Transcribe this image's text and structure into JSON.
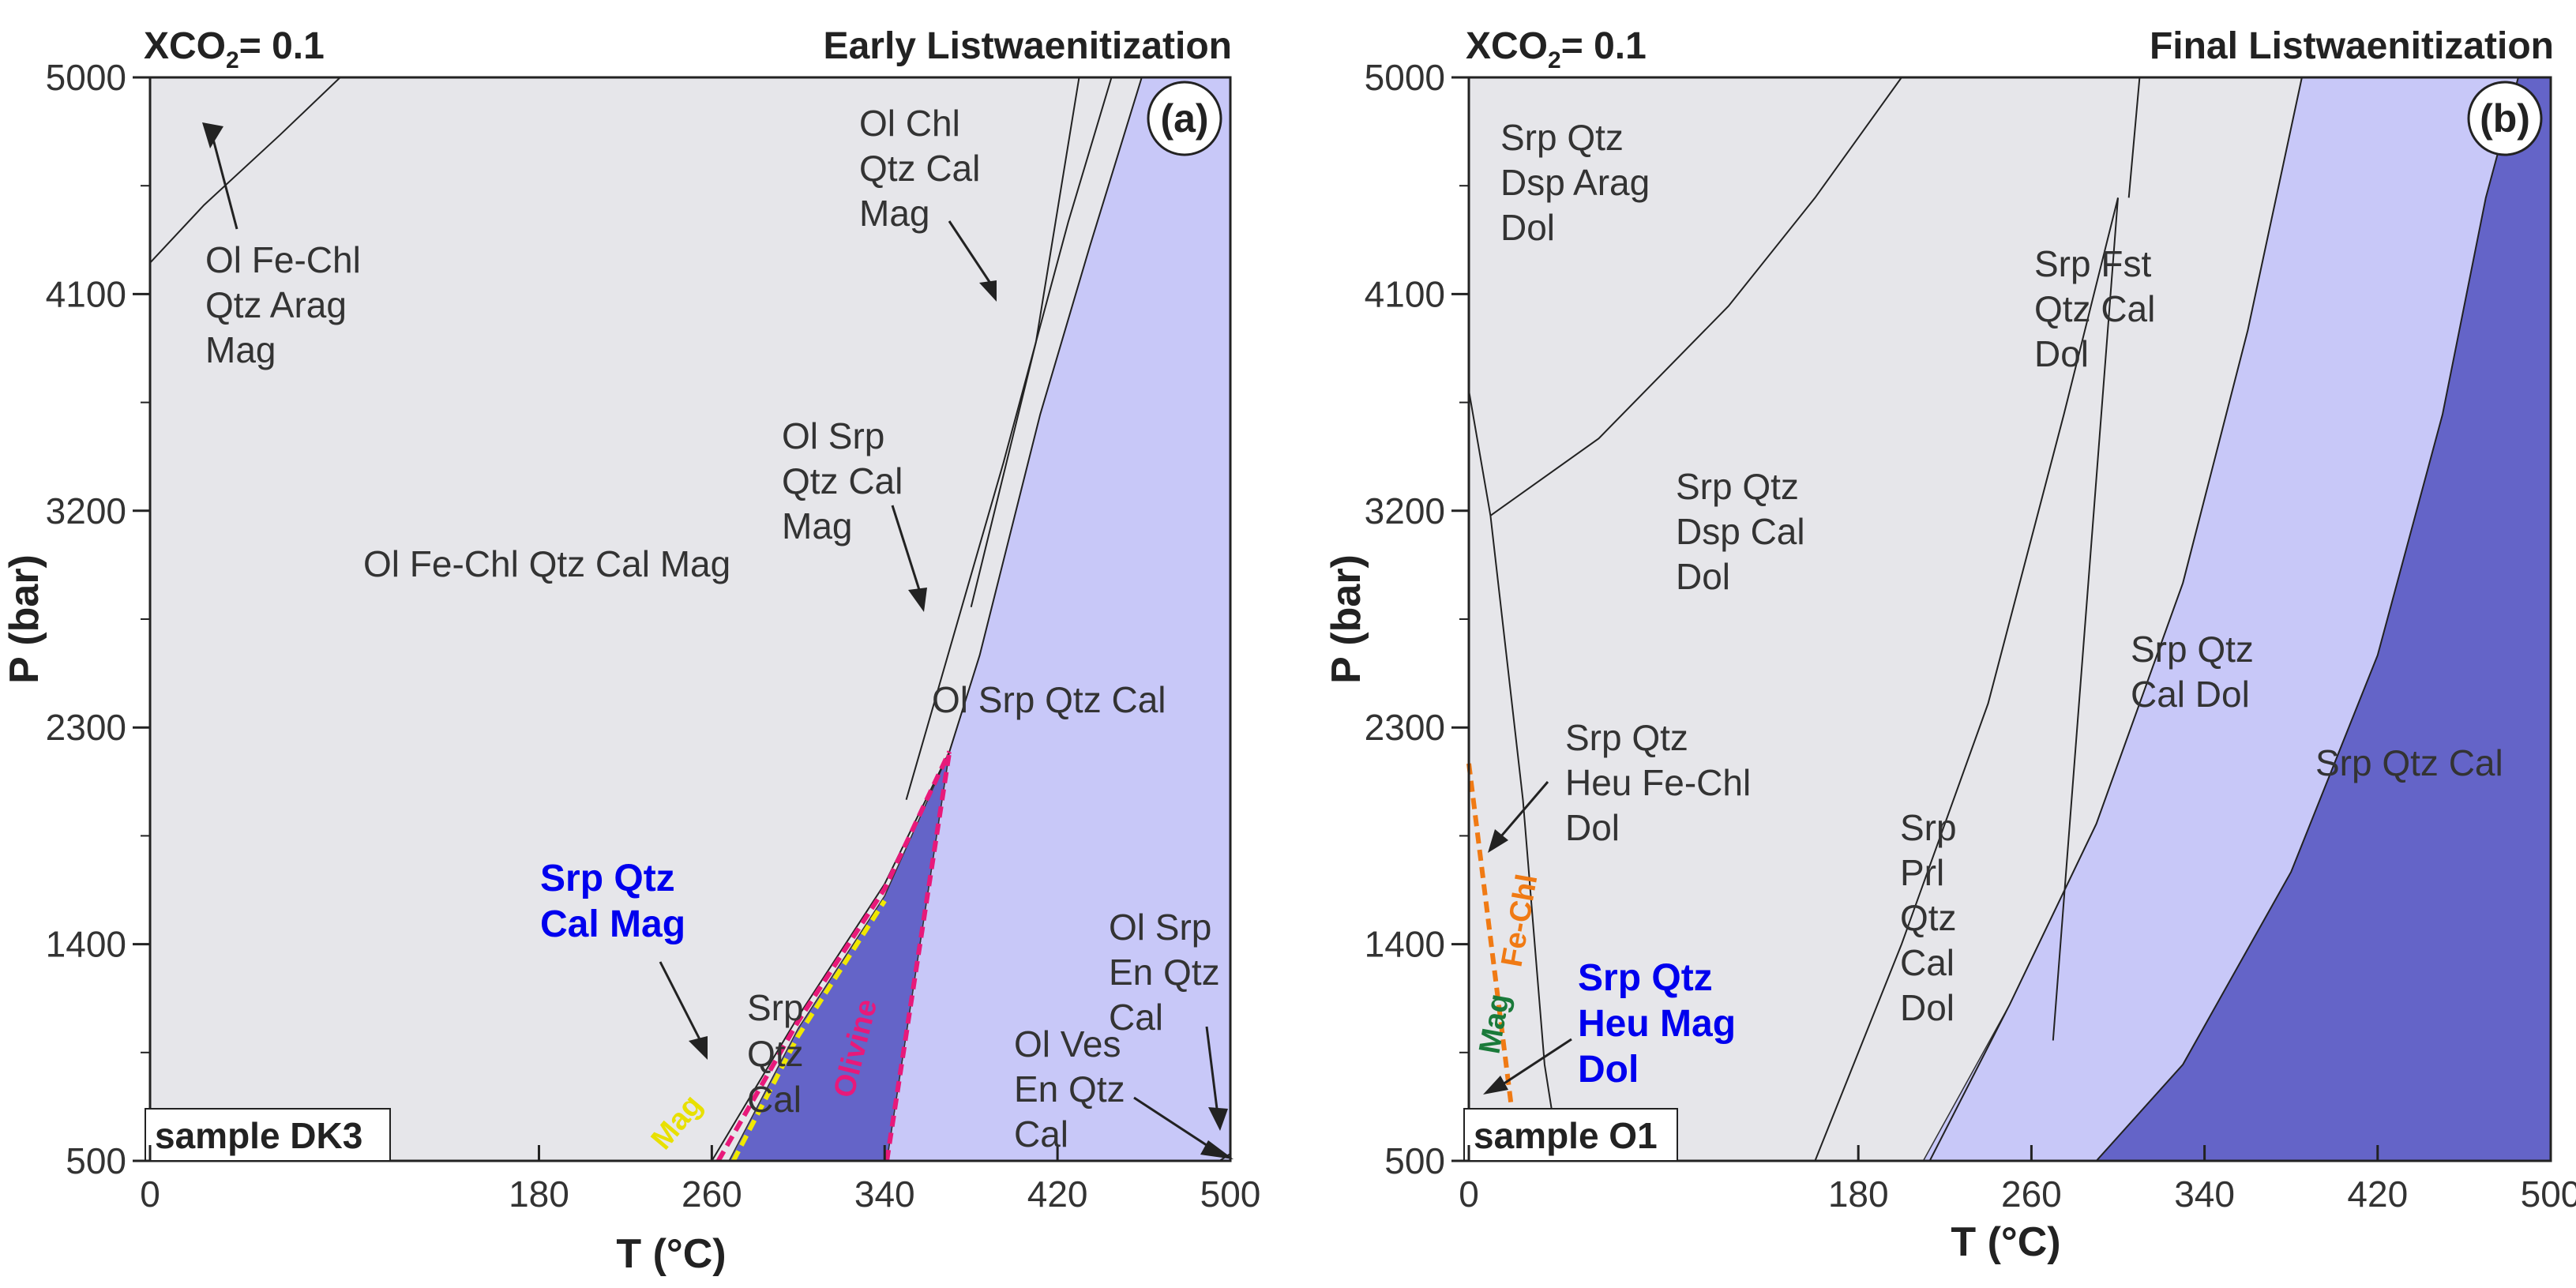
{
  "chart_data": [
    {
      "type": "phase-diagram",
      "panel_label": "(a)",
      "title_left": "XCO",
      "title_left_sub": "2",
      "title_left_value": "= 0.1",
      "title_right": "Early Listwaenitization",
      "xlabel": "T (°C)",
      "ylabel": "P (bar)",
      "xlim": [
        0,
        500
      ],
      "ylim": [
        500,
        5000
      ],
      "xticks": [
        0,
        180,
        260,
        340,
        420,
        500
      ],
      "yticks": [
        500,
        1400,
        2300,
        3200,
        4100,
        5000
      ],
      "sample": "sample DK3",
      "colors": {
        "background": "#e6e6ea",
        "light": "#c8c8f8",
        "dark": "#6464c8",
        "olivine": "#e8197a",
        "mag": "#f0e800"
      },
      "fields": [
        {
          "name": "Ol Fe-Chl Qtz Cal Mag",
          "color": "background"
        },
        {
          "name": "Ol Srp Qtz Cal",
          "color": "light",
          "polygon": [
            [
              341,
              500
            ],
            [
              370,
              2200
            ],
            [
              384,
              2600
            ],
            [
              412,
              3600
            ],
            [
              435,
              4300
            ],
            [
              459,
              5000
            ],
            [
              500,
              5000
            ],
            [
              500,
              500
            ]
          ]
        },
        {
          "name": "Srp Qtz Cal Mag",
          "color": "dark",
          "polygon": [
            [
              268,
              500
            ],
            [
              300,
              1050
            ],
            [
              340,
              1600
            ],
            [
              370,
              2200
            ],
            [
              341,
              500
            ]
          ]
        }
      ],
      "boundaries": [
        {
          "points": [
            [
              0,
              4230
            ],
            [
              25,
              4470
            ],
            [
              60,
              4760
            ],
            [
              88,
              5000
            ]
          ]
        },
        {
          "points": [
            [
              260,
              500
            ],
            [
              300,
              1100
            ],
            [
              340,
              1650
            ],
            [
              370,
              2200
            ],
            [
              384,
              2600
            ],
            [
              412,
              3600
            ],
            [
              435,
              4300
            ],
            [
              459,
              5000
            ]
          ]
        },
        {
          "points": [
            [
              350,
              2000
            ],
            [
              395,
              3400
            ],
            [
              425,
              4400
            ],
            [
              445,
              5000
            ]
          ]
        },
        {
          "points": [
            [
              380,
              2800
            ],
            [
              410,
              3900
            ],
            [
              430,
              5000
            ]
          ]
        },
        {
          "points": [
            [
              495,
              500
            ],
            [
              500,
              530
            ]
          ]
        }
      ],
      "dashed": [
        {
          "name": "Olivine",
          "points": [
            [
              341,
              500
            ],
            [
              370,
              2200
            ]
          ]
        },
        {
          "name": "Olivine-upper",
          "points": [
            [
              263,
              500
            ],
            [
              300,
              1080
            ],
            [
              340,
              1630
            ],
            [
              370,
              2200
            ]
          ]
        },
        {
          "name": "Mag",
          "points": [
            [
              270,
              500
            ],
            [
              300,
              1020
            ],
            [
              340,
              1580
            ]
          ]
        }
      ],
      "labels": [
        {
          "text": [
            "Ol Fe-Chl",
            "Qtz Arag",
            "Mag"
          ]
        },
        {
          "text": [
            "Ol Chl",
            "Qtz Cal",
            "Mag"
          ]
        },
        {
          "text": [
            "Ol Srp",
            "Qtz Cal",
            "Mag"
          ]
        },
        {
          "text": [
            "Ol Fe-Chl Qtz Cal Mag"
          ]
        },
        {
          "text": [
            "Ol Srp Qtz Cal"
          ]
        },
        {
          "text": [
            "Srp Qtz",
            "Cal Mag"
          ],
          "emphasis": true
        },
        {
          "text": [
            "Srp",
            "Qtz",
            "Cal"
          ]
        },
        {
          "text": [
            "Ol Srp",
            "En Qtz",
            "Cal"
          ]
        },
        {
          "text": [
            "Ol Ves",
            "En Qtz",
            "Cal"
          ]
        }
      ],
      "line_labels": [
        "Olivine",
        "Mag"
      ]
    },
    {
      "type": "phase-diagram",
      "panel_label": "(b)",
      "title_left": "XCO",
      "title_left_sub": "2",
      "title_left_value": "= 0.1",
      "title_right": "Final Listwaenitization",
      "xlabel": "T (°C)",
      "ylabel": "P (bar)",
      "xlim": [
        0,
        500
      ],
      "ylim": [
        500,
        5000
      ],
      "xticks": [
        0,
        180,
        260,
        340,
        420,
        500
      ],
      "yticks": [
        500,
        1400,
        2300,
        3200,
        4100,
        5000
      ],
      "sample": "sample O1",
      "colors": {
        "background": "#e6e6ea",
        "light": "#c8c8f8",
        "dark": "#6464c8",
        "fechl": "#f07a14",
        "mag": "#1a7a3a"
      },
      "fields": [
        {
          "name": "Srp Qtz Dsp Cal Dol",
          "color": "background"
        },
        {
          "name": "Srp Qtz Cal Dol",
          "color": "light",
          "polygon": [
            [
              210,
              500
            ],
            [
              250,
              1150
            ],
            [
              290,
              1900
            ],
            [
              330,
              2900
            ],
            [
              360,
              3950
            ],
            [
              385,
              5000
            ],
            [
              500,
              5000
            ],
            [
              500,
              500
            ]
          ]
        },
        {
          "name": "Srp Qtz Cal",
          "color": "dark",
          "polygon": [
            [
              290,
              500
            ],
            [
              330,
              900
            ],
            [
              380,
              1700
            ],
            [
              420,
              2600
            ],
            [
              450,
              3600
            ],
            [
              470,
              4500
            ],
            [
              485,
              5000
            ],
            [
              500,
              5000
            ],
            [
              500,
              500
            ]
          ]
        }
      ],
      "boundaries": [
        {
          "points": [
            [
              10,
              3180
            ],
            [
              60,
              3500
            ],
            [
              120,
              4050
            ],
            [
              160,
              4500
            ],
            [
              200,
              5000
            ]
          ]
        },
        {
          "points": [
            [
              0,
              3700
            ],
            [
              10,
              3180
            ],
            [
              25,
              2000
            ],
            [
              35,
              900
            ],
            [
              42,
              500
            ]
          ]
        },
        {
          "points": [
            [
              160,
              500
            ],
            [
              200,
              1400
            ],
            [
              240,
              2400
            ],
            [
              275,
              3600
            ],
            [
              300,
              4500
            ]
          ]
        },
        {
          "points": [
            [
              270,
              1000
            ],
            [
              300,
              4500
            ]
          ]
        },
        {
          "points": [
            [
              305,
              4500
            ],
            [
              310,
              5000
            ]
          ]
        },
        {
          "points": [
            [
              213,
              500
            ],
            [
              250,
              1150
            ],
            [
              290,
              1900
            ],
            [
              330,
              2900
            ],
            [
              360,
              3950
            ],
            [
              385,
              5000
            ]
          ]
        },
        {
          "points": [
            [
              290,
              500
            ],
            [
              330,
              900
            ],
            [
              380,
              1700
            ],
            [
              420,
              2600
            ],
            [
              450,
              3600
            ],
            [
              470,
              4500
            ],
            [
              485,
              5000
            ]
          ]
        }
      ],
      "dashed": [
        {
          "name": "Fe-Chl",
          "points": [
            [
              0,
              2150
            ],
            [
              20,
              700
            ]
          ]
        }
      ],
      "labels": [
        {
          "text": [
            "Srp Qtz",
            "Dsp Arag",
            "Dol"
          ]
        },
        {
          "text": [
            "Srp Fst",
            "Qtz Cal",
            "Dol"
          ]
        },
        {
          "text": [
            "Srp Qtz",
            "Dsp Cal",
            "Dol"
          ]
        },
        {
          "text": [
            "Srp Qtz",
            "Cal Dol"
          ]
        },
        {
          "text": [
            "Srp Qtz Cal"
          ]
        },
        {
          "text": [
            "Srp Qtz",
            "Heu Fe-Chl",
            "Dol"
          ]
        },
        {
          "text": [
            "Srp",
            "Prl",
            "Qtz",
            "Cal",
            "Dol"
          ]
        },
        {
          "text": [
            "Srp Qtz",
            "Heu Mag",
            "Dol"
          ],
          "emphasis": true
        }
      ],
      "line_labels": [
        "Fe-Chl",
        "Mag"
      ]
    }
  ]
}
